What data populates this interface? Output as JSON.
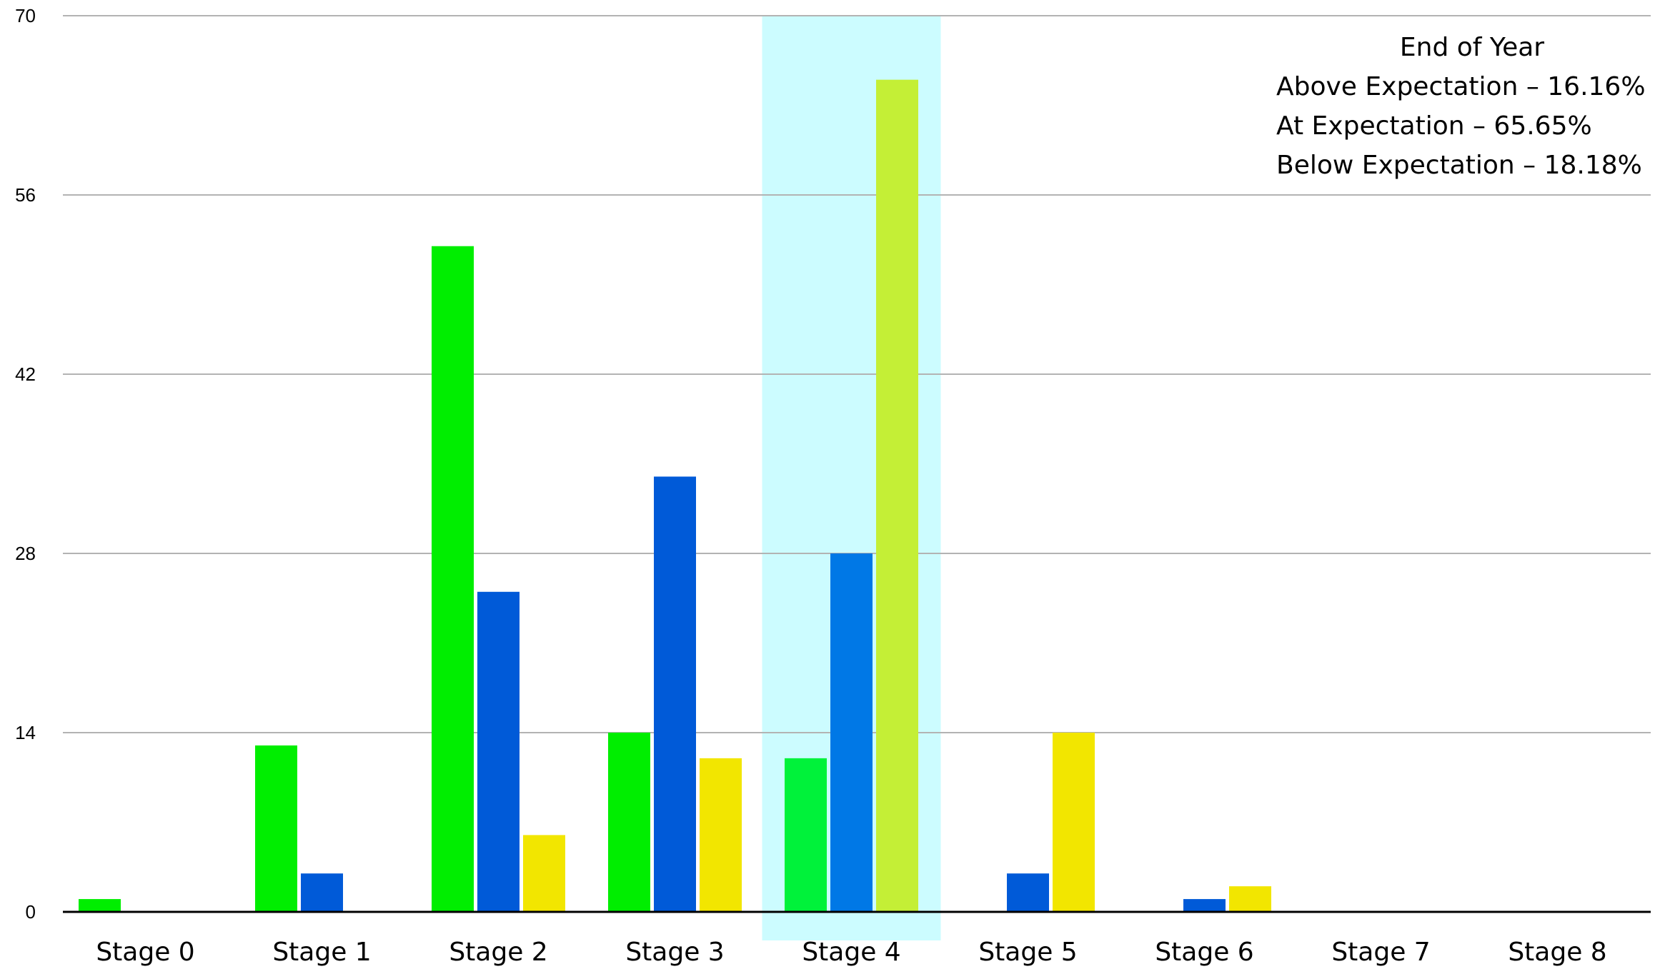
{
  "chart_data": {
    "type": "bar",
    "title": "",
    "xlabel": "",
    "ylabel": "",
    "ylim": [
      0,
      70
    ],
    "yticks": [
      0,
      14,
      28,
      42,
      56,
      70
    ],
    "grid": true,
    "categories": [
      "Stage 0",
      "Stage 1",
      "Stage 2",
      "Stage 3",
      "Stage 4",
      "Stage 5",
      "Stage 6",
      "Stage 7",
      "Stage 8"
    ],
    "series": [
      {
        "values": [
          1,
          13,
          52,
          14,
          12,
          0,
          0,
          0,
          0
        ],
        "color": "#00ee00",
        "highlight_color": "#00f23a"
      },
      {
        "values": [
          0,
          3,
          25,
          34,
          28,
          3,
          1,
          0,
          0
        ],
        "color": "#005ad8",
        "highlight_color": "#0078e6"
      },
      {
        "values": [
          0,
          0,
          6,
          12,
          65,
          14,
          2,
          0,
          0
        ],
        "color": "#f2e600",
        "highlight_color": "#c4ef36"
      }
    ],
    "highlight_category": "Stage 4",
    "highlight_color": "#ccfcff",
    "annotation": {
      "placement": "top-right",
      "lines": [
        "End of Year",
        "Above Expectation – 16.16%",
        "At Expectation – 65.65%",
        "Below Expectation – 18.18%"
      ]
    }
  }
}
